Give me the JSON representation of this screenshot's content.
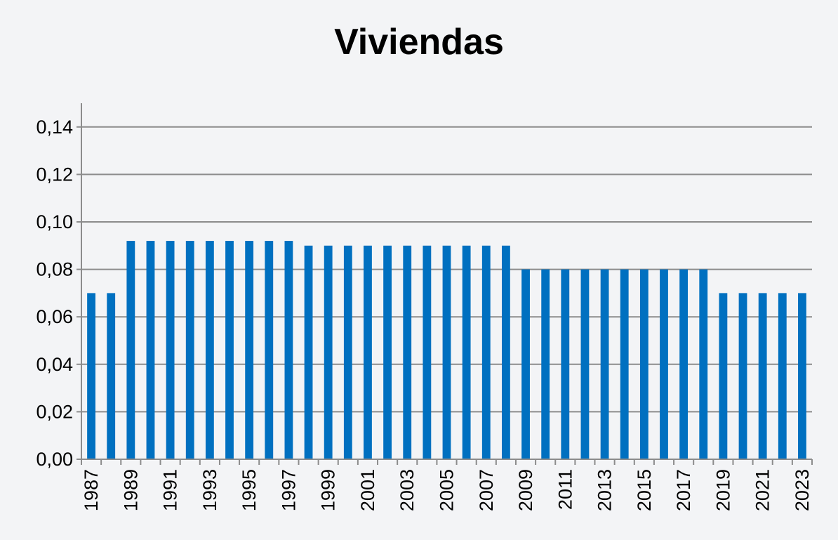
{
  "chart_data": {
    "type": "bar",
    "title": "Viviendas",
    "xlabel": "",
    "ylabel": "",
    "ylim": [
      0,
      0.15
    ],
    "y_ticks": [
      "0,00",
      "0,02",
      "0,04",
      "0,06",
      "0,08",
      "0,10",
      "0,12",
      "0,14"
    ],
    "y_tick_values": [
      0,
      0.02,
      0.04,
      0.06,
      0.08,
      0.1,
      0.12,
      0.14
    ],
    "grid": true,
    "bar_color": "#0070c0",
    "categories": [
      "1987",
      "1988",
      "1989",
      "1990",
      "1991",
      "1992",
      "1993",
      "1994",
      "1995",
      "1996",
      "1997",
      "1998",
      "1999",
      "2000",
      "2001",
      "2002",
      "2003",
      "2004",
      "2005",
      "2006",
      "2007",
      "2008",
      "2009",
      "2010",
      "2011",
      "2012",
      "2013",
      "2014",
      "2015",
      "2016",
      "2017",
      "2018",
      "2019",
      "2020",
      "2021",
      "2022",
      "2023"
    ],
    "x_tick_labels": [
      "1987",
      "",
      "1989",
      "",
      "1991",
      "",
      "1993",
      "",
      "1995",
      "",
      "1997",
      "",
      "1999",
      "",
      "2001",
      "",
      "2003",
      "",
      "2005",
      "",
      "2007",
      "",
      "2009",
      "",
      "2011",
      "",
      "2013",
      "",
      "2015",
      "",
      "2017",
      "",
      "2019",
      "",
      "2021",
      "",
      "2023"
    ],
    "values": [
      0.07,
      0.07,
      0.092,
      0.092,
      0.092,
      0.092,
      0.092,
      0.092,
      0.092,
      0.092,
      0.092,
      0.09,
      0.09,
      0.09,
      0.09,
      0.09,
      0.09,
      0.09,
      0.09,
      0.09,
      0.09,
      0.09,
      0.08,
      0.08,
      0.08,
      0.08,
      0.08,
      0.08,
      0.08,
      0.08,
      0.08,
      0.08,
      0.07,
      0.07,
      0.07,
      0.07,
      0.07
    ]
  }
}
